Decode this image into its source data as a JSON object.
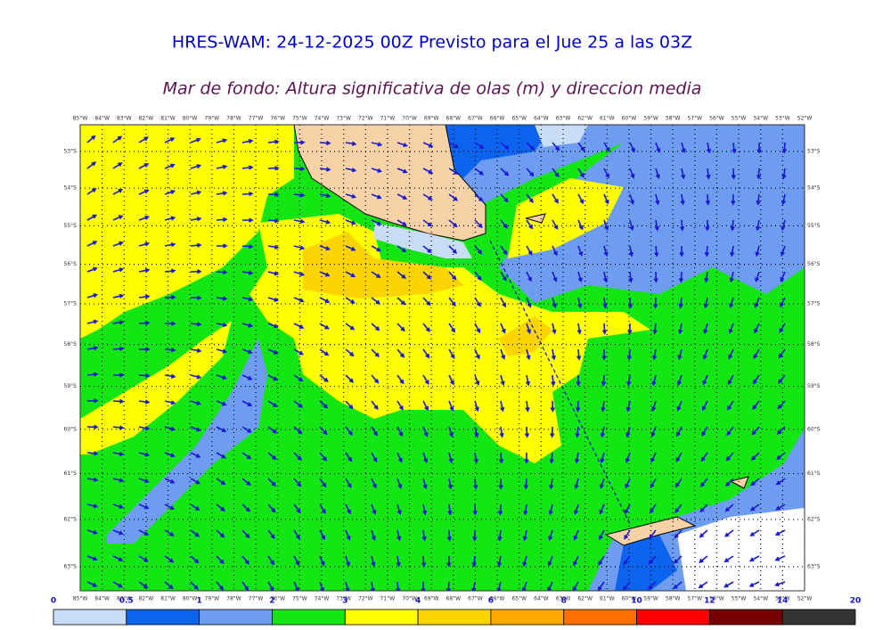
{
  "header": {
    "title": "HRES-WAM: 24-12-2025 00Z Previsto para el Jue 25 a las 03Z",
    "subtitle": "Mar de fondo: Altura significativa de olas (m) y direccion media"
  },
  "map": {
    "lon_labels": [
      "85°W",
      "84°W",
      "83°W",
      "82°W",
      "81°W",
      "80°W",
      "79°W",
      "78°W",
      "77°W",
      "76°W",
      "75°W",
      "74°W",
      "73°W",
      "72°W",
      "71°W",
      "70°W",
      "69°W",
      "68°W",
      "67°W",
      "66°W",
      "65°W",
      "64°W",
      "63°W",
      "62°W",
      "61°W",
      "60°W",
      "59°W",
      "58°W",
      "57°W",
      "56°W",
      "55°W",
      "54°W",
      "53°W",
      "52°W"
    ],
    "lat_labels": [
      "53°S",
      "54°S",
      "55°S",
      "56°S",
      "57°S",
      "58°S",
      "59°S",
      "60°S",
      "61°S",
      "62°S",
      "63°S"
    ]
  },
  "colorbar": {
    "ticks": [
      0,
      0.5,
      1,
      2,
      3,
      4,
      6,
      8,
      10,
      12,
      14,
      20
    ],
    "colors": [
      "#c8dcf6",
      "#0c64ee",
      "#6e9cf0",
      "#14e614",
      "#ffff00",
      "#fcd400",
      "#ffa800",
      "#ff7000",
      "#ff0000",
      "#780000",
      "#343434"
    ]
  }
}
